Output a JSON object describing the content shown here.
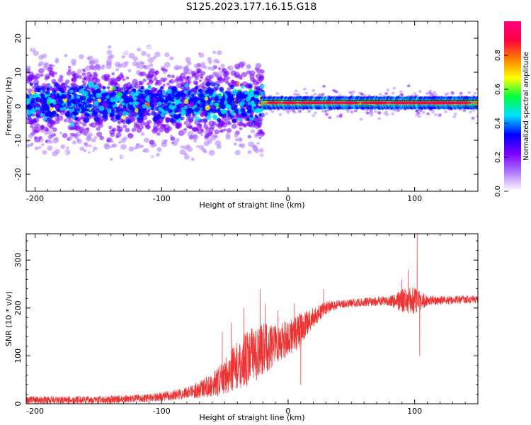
{
  "title": "S125.2023.177.16.15.G18",
  "chart_data": [
    {
      "type": "heatmap",
      "xlabel": "Height of straight line (km)",
      "ylabel": "Frequency (Hz)",
      "xlim": [
        -207,
        150
      ],
      "ylim": [
        -25,
        25
      ],
      "xticks": [
        -200,
        -100,
        0,
        100
      ],
      "xtick_labels": [
        "-200",
        "-100",
        "0",
        "100"
      ],
      "yticks": [
        20,
        10,
        0,
        -10,
        -20
      ],
      "ytick_labels": [
        "20",
        "10",
        "0",
        "-10",
        "-20"
      ],
      "colorbar": {
        "label": "Normalized spectral amplitude",
        "range": [
          0.0,
          1.0
        ],
        "ticks": [
          0.0,
          0.2,
          0.4,
          0.6,
          0.8
        ],
        "tick_labels": [
          "0.0",
          "0.2",
          "0.4",
          "0.6",
          "0.8"
        ],
        "colors": [
          "#ffffff",
          "#b07aff",
          "#7a00ff",
          "#0000ff",
          "#00e0ff",
          "#00ff40",
          "#ffff00",
          "#ff8000",
          "#ff0040",
          "#ff0080"
        ]
      },
      "description_of_structure": {
        "diffuse_noise_x_range": [
          -207,
          -20
        ],
        "narrow_line_x_range": [
          -20,
          150
        ],
        "line_center_frequency": 1,
        "line_color_max": "#ff3355"
      }
    },
    {
      "type": "line",
      "xlabel": "Height of straight line (km)",
      "ylabel": "SNR (10 * v/v)",
      "xlim": [
        -207,
        150
      ],
      "ylim": [
        0,
        355
      ],
      "xticks": [
        -200,
        -100,
        0,
        100
      ],
      "xtick_labels": [
        "-200",
        "-100",
        "0",
        "100"
      ],
      "yticks": [
        0,
        100,
        200,
        300
      ],
      "ytick_labels": [
        "0",
        "100",
        "200",
        "300"
      ],
      "color": "#ee3333",
      "trend": [
        [
          -207,
          8
        ],
        [
          -150,
          8
        ],
        [
          -110,
          12
        ],
        [
          -85,
          20
        ],
        [
          -70,
          30
        ],
        [
          -55,
          45
        ],
        [
          -45,
          70
        ],
        [
          -35,
          90
        ],
        [
          -25,
          105
        ],
        [
          -15,
          120
        ],
        [
          -5,
          130
        ],
        [
          5,
          145
        ],
        [
          12,
          160
        ],
        [
          20,
          180
        ],
        [
          30,
          200
        ],
        [
          40,
          208
        ],
        [
          60,
          212
        ],
        [
          80,
          215
        ],
        [
          100,
          215
        ],
        [
          125,
          216
        ],
        [
          150,
          218
        ]
      ],
      "noise_amplitude": [
        [
          -207,
          8
        ],
        [
          -110,
          8
        ],
        [
          -80,
          12
        ],
        [
          -60,
          25
        ],
        [
          -45,
          45
        ],
        [
          -30,
          60
        ],
        [
          -20,
          55
        ],
        [
          -5,
          40
        ],
        [
          10,
          35
        ],
        [
          20,
          20
        ],
        [
          40,
          8
        ],
        [
          80,
          10
        ],
        [
          90,
          25
        ],
        [
          100,
          30
        ],
        [
          110,
          10
        ],
        [
          150,
          8
        ]
      ],
      "spikes": [
        [
          -52,
          150
        ],
        [
          -45,
          170
        ],
        [
          -35,
          200
        ],
        [
          -22,
          240
        ],
        [
          -18,
          210
        ],
        [
          -12,
          160
        ],
        [
          -8,
          195
        ],
        [
          5,
          210
        ],
        [
          10,
          40
        ],
        [
          28,
          240
        ],
        [
          90,
          260
        ],
        [
          95,
          280
        ],
        [
          102,
          365
        ],
        [
          104,
          100
        ]
      ]
    }
  ]
}
